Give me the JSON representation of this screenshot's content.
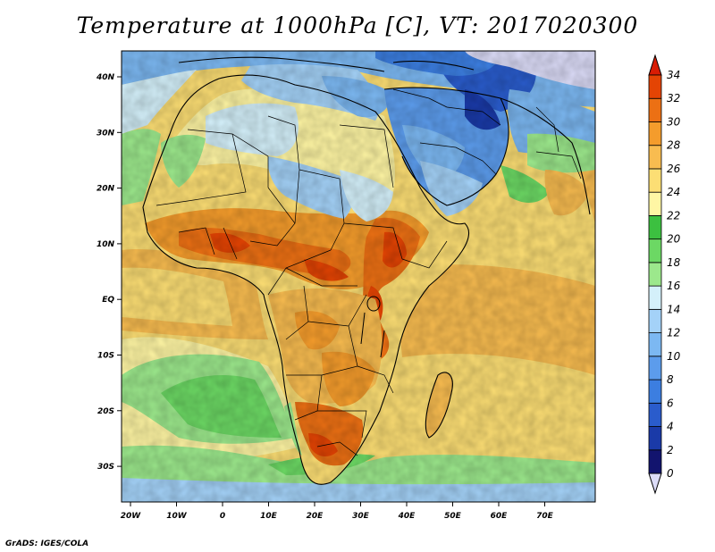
{
  "title": "Temperature at 1000hPa [C], VT: 2017020300",
  "credit": "GrADS: IGES/COLA",
  "lon_labels": [
    "20W",
    "10W",
    "0",
    "10E",
    "20E",
    "30E",
    "40E",
    "50E",
    "60E",
    "70E"
  ],
  "lat_labels": [
    "40N",
    "30N",
    "20N",
    "10N",
    "EQ",
    "10S",
    "20S",
    "30S"
  ],
  "colorbar": {
    "labels": [
      "0",
      "2",
      "4",
      "6",
      "8",
      "10",
      "12",
      "14",
      "16",
      "18",
      "20",
      "22",
      "24",
      "26",
      "28",
      "30",
      "32",
      "34"
    ],
    "colors": [
      "#12146e",
      "#1a3aa8",
      "#2a5ccc",
      "#3c7ee0",
      "#5c9cec",
      "#7cb8f2",
      "#a4d2f8",
      "#d4f0fa",
      "#9ce88c",
      "#6cd864",
      "#3cc040",
      "#fff6a4",
      "#fcde74",
      "#f8bc50",
      "#f49c2c",
      "#ec7014",
      "#e44404",
      "#d81c04"
    ],
    "over_color": "#d81c04",
    "under_color": "#dcdcf8"
  }
}
